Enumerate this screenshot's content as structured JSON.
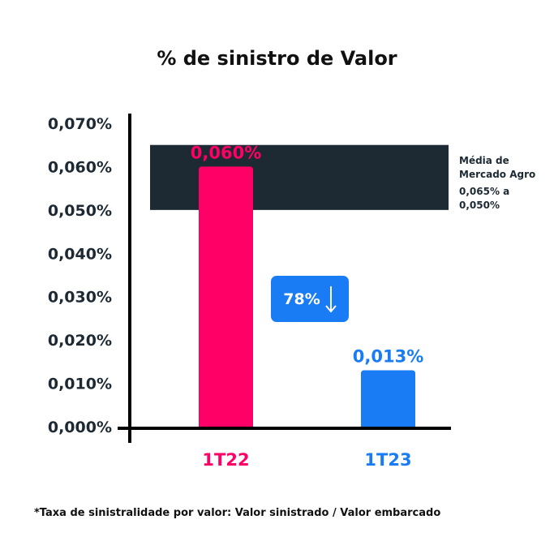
{
  "chart_data": {
    "type": "bar",
    "title": "% de sinistro de Valor",
    "categories": [
      "1T22",
      "1T23"
    ],
    "values": [
      0.06,
      0.013
    ],
    "data_labels": [
      "0,060%",
      "0,013%"
    ],
    "colors": [
      "#ff0066",
      "#1a7cf5"
    ],
    "ylim": [
      0,
      0.07
    ],
    "yticks": [
      0,
      0.01,
      0.02,
      0.03,
      0.04,
      0.05,
      0.06,
      0.07
    ],
    "ytick_labels": [
      "0,000%",
      "0,010%",
      "0,020%",
      "0,030%",
      "0,040%",
      "0,050%",
      "0,060%",
      "0,070%"
    ],
    "grid": false,
    "band": {
      "from": 0.05,
      "to": 0.065,
      "color": "#1d2a33",
      "label": "Média de Mercado Agro",
      "range_label": "0,065% a 0,050%"
    },
    "change_badge": {
      "text": "78%",
      "icon": "arrow-down-icon",
      "color": "#1a7cf5"
    },
    "footnote": "*Taxa de sinistralidade por valor: Valor sinistrado / Valor embarcado"
  }
}
